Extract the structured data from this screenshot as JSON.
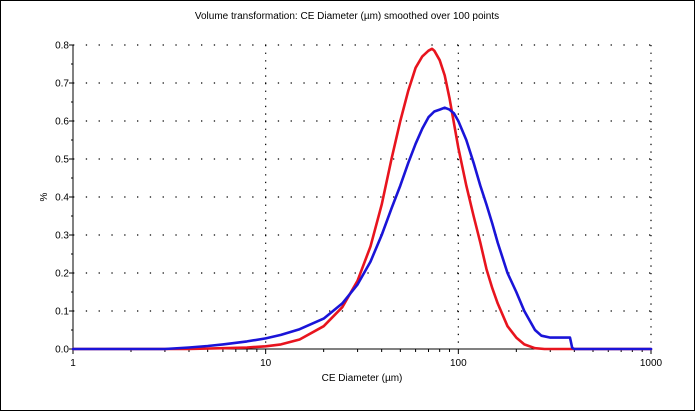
{
  "chart_data": {
    "type": "line",
    "title": "Volume transformation: CE Diameter (µm) smoothed over 100 points",
    "xlabel": "CE Diameter (µm)",
    "ylabel": "%",
    "x_scale": "log",
    "xlim": [
      1,
      1000
    ],
    "ylim": [
      0,
      0.8
    ],
    "x_ticks": [
      1,
      10,
      100,
      1000
    ],
    "x_tick_labels": [
      "1",
      "10",
      "100",
      "1000"
    ],
    "y_ticks": [
      0,
      0.1,
      0.2,
      0.3,
      0.4,
      0.5,
      0.6,
      0.7,
      0.8
    ],
    "y_tick_labels": [
      "0.0",
      "0.1",
      "0.2",
      "0.3",
      "0.4",
      "0.5",
      "0.6",
      "0.7",
      "0.8"
    ],
    "grid": true,
    "colors": {
      "red_series": "#e8141e",
      "blue_series": "#1a14d8",
      "grid": "#000000"
    },
    "series": [
      {
        "color": "#e8141e",
        "x": [
          1,
          4,
          6,
          8,
          10,
          12,
          15,
          20,
          25,
          30,
          35,
          40,
          45,
          50,
          55,
          60,
          65,
          70,
          73,
          75,
          80,
          85,
          90,
          100,
          110,
          120,
          130,
          140,
          150,
          160,
          180,
          200,
          220,
          250,
          280,
          300,
          1000
        ],
        "y": [
          0,
          0,
          0.002,
          0.004,
          0.007,
          0.012,
          0.025,
          0.06,
          0.11,
          0.18,
          0.27,
          0.38,
          0.5,
          0.6,
          0.68,
          0.74,
          0.77,
          0.785,
          0.79,
          0.785,
          0.76,
          0.72,
          0.66,
          0.53,
          0.43,
          0.35,
          0.28,
          0.21,
          0.16,
          0.12,
          0.06,
          0.03,
          0.012,
          0.002,
          0,
          0,
          0
        ]
      },
      {
        "color": "#1a14d8",
        "x": [
          1,
          3,
          4,
          5,
          6,
          8,
          10,
          12,
          15,
          20,
          25,
          30,
          35,
          40,
          45,
          50,
          55,
          60,
          65,
          70,
          75,
          80,
          85,
          90,
          95,
          100,
          110,
          120,
          130,
          140,
          150,
          160,
          180,
          200,
          220,
          250,
          270,
          300,
          350,
          380,
          390,
          400,
          1000
        ],
        "y": [
          0,
          0,
          0.004,
          0.008,
          0.012,
          0.02,
          0.028,
          0.037,
          0.052,
          0.08,
          0.12,
          0.17,
          0.23,
          0.3,
          0.37,
          0.43,
          0.49,
          0.54,
          0.58,
          0.61,
          0.625,
          0.63,
          0.635,
          0.63,
          0.62,
          0.6,
          0.55,
          0.49,
          0.43,
          0.38,
          0.33,
          0.28,
          0.2,
          0.15,
          0.1,
          0.05,
          0.035,
          0.03,
          0.03,
          0.03,
          0.003,
          0,
          0
        ]
      }
    ]
  }
}
